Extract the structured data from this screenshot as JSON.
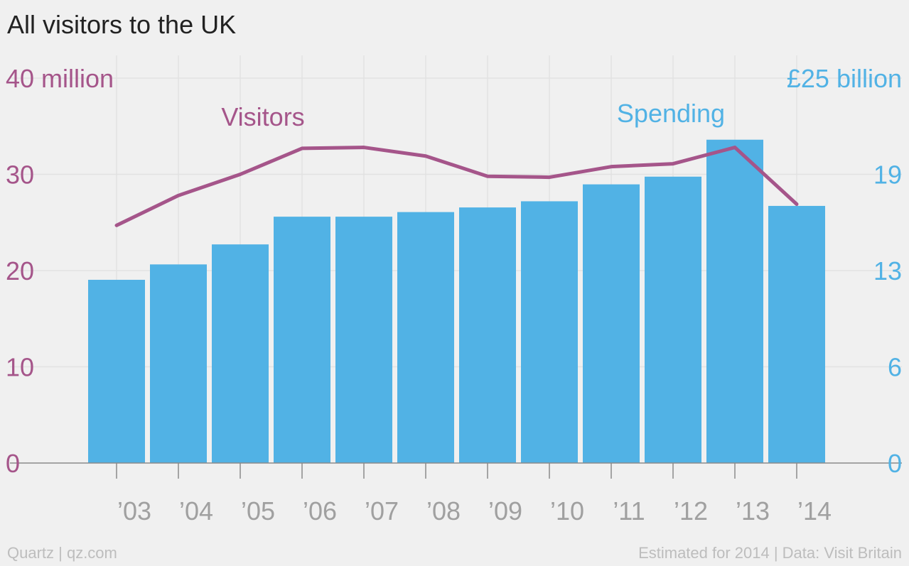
{
  "chart_data": {
    "type": "bar+line",
    "title": "All visitors to the UK",
    "categories": [
      "’03",
      "’04",
      "’05",
      "’06",
      "’07",
      "’08",
      "’09",
      "’10",
      "’11",
      "’12",
      "’13",
      "’14"
    ],
    "series": [
      {
        "name": "Spending",
        "type": "bar",
        "axis": "right",
        "color": "#51b2e5",
        "values": [
          11.9,
          12.9,
          14.2,
          16.0,
          16.0,
          16.3,
          16.6,
          17.0,
          18.1,
          18.6,
          21.0,
          16.7
        ]
      },
      {
        "name": "Visitors",
        "type": "line",
        "axis": "left",
        "color": "#a5558a",
        "values": [
          24.7,
          27.8,
          30.0,
          32.7,
          32.8,
          31.9,
          29.8,
          29.7,
          30.8,
          31.1,
          32.8,
          26.9
        ]
      }
    ],
    "y_left": {
      "ticks": [
        "0",
        "10",
        "20",
        "30",
        "40 million"
      ],
      "range": [
        0,
        40
      ],
      "color": "#a5558a"
    },
    "y_right": {
      "ticks": [
        "0",
        "6",
        "13",
        "19",
        "£25 billion"
      ],
      "range": [
        0,
        25
      ],
      "color": "#51b2e5"
    },
    "grid": true
  },
  "footer": {
    "source_left": "Quartz | qz.com",
    "source_right": "Estimated for 2014 | Data: Visit Britain"
  }
}
